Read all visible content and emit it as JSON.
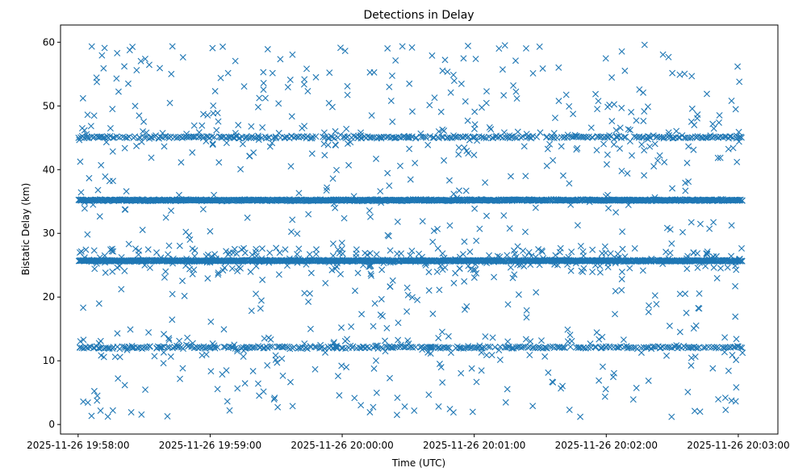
{
  "chart_data": {
    "type": "scatter",
    "title": "Detections in Delay",
    "xlabel": "Time (UTC)",
    "ylabel": "Bistatic Delay (km)",
    "x_ticks": [
      "2025-11-26 19:58:00",
      "2025-11-26 19:59:00",
      "2025-11-26 20:00:00",
      "2025-11-26 20:01:00",
      "2025-11-26 20:02:00",
      "2025-11-26 20:03:00"
    ],
    "y_ticks": [
      0,
      10,
      20,
      30,
      40,
      50,
      60
    ],
    "xlim": [
      "2025-11-26 19:57:52",
      "2025-11-26 20:03:18"
    ],
    "ylim": [
      -1.5,
      62.7
    ],
    "data_x_range": [
      "2025-11-26 19:58:00",
      "2025-11-26 20:03:02"
    ],
    "marker": "x",
    "grid": false,
    "legend": "none",
    "colors": {
      "series": "#1f77b4"
    },
    "series": [
      {
        "description": "Dense band of detections",
        "y_level": 35.2,
        "density": "continuous"
      },
      {
        "description": "Dense band of detections",
        "y_level": 25.7,
        "density": "continuous"
      },
      {
        "description": "Dense band of detections",
        "y_level": 45.1,
        "density": "dense, intermittent"
      },
      {
        "description": "Dense band of detections",
        "y_level": 12.1,
        "density": "dense, intermittent"
      },
      {
        "description": "Scattered detections",
        "y_range": [
          1.2,
          59.8
        ],
        "density": "sparse"
      }
    ]
  }
}
